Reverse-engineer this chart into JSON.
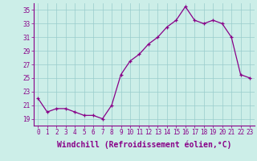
{
  "x": [
    0,
    1,
    2,
    3,
    4,
    5,
    6,
    7,
    8,
    9,
    10,
    11,
    12,
    13,
    14,
    15,
    16,
    17,
    18,
    19,
    20,
    21,
    22,
    23
  ],
  "y": [
    22.0,
    20.0,
    20.5,
    20.5,
    20.0,
    19.5,
    19.5,
    19.0,
    21.0,
    25.5,
    27.5,
    28.5,
    30.0,
    31.0,
    32.5,
    33.5,
    35.5,
    33.5,
    33.0,
    33.5,
    33.0,
    31.0,
    25.5,
    25.0
  ],
  "line_color": "#880088",
  "marker": "+",
  "bg_color": "#cceee8",
  "grid_color": "#99cccc",
  "xlabel": "Windchill (Refroidissement éolien,°C)",
  "ylim": [
    18,
    36
  ],
  "xlim": [
    -0.5,
    23.5
  ],
  "yticks": [
    19,
    21,
    23,
    25,
    27,
    29,
    31,
    33,
    35
  ],
  "xticks": [
    0,
    1,
    2,
    3,
    4,
    5,
    6,
    7,
    8,
    9,
    10,
    11,
    12,
    13,
    14,
    15,
    16,
    17,
    18,
    19,
    20,
    21,
    22,
    23
  ],
  "tick_fontsize": 5.5,
  "xlabel_fontsize": 7.0
}
